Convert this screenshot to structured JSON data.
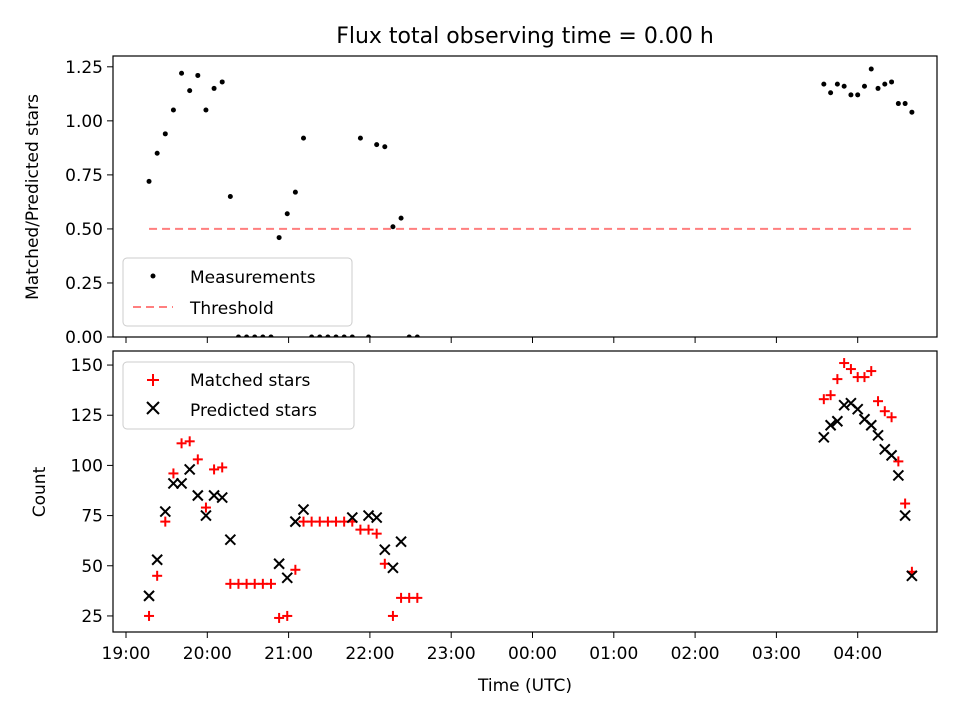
{
  "chart_data": [
    {
      "type": "scatter",
      "title": "Flux total observing time = 0.00 h",
      "xlabel": "",
      "ylabel": "Matched/Predicted stars",
      "xlim": [
        "19:00",
        "05:00"
      ],
      "ylim": [
        0,
        1.3
      ],
      "x_ticks": [
        "19:00",
        "20:00",
        "21:00",
        "22:00",
        "23:00",
        "00:00",
        "01:00",
        "02:00",
        "03:00",
        "04:00"
      ],
      "y_ticks": [
        "0.00",
        "0.25",
        "0.50",
        "0.75",
        "1.00",
        "1.25"
      ],
      "legend_position": "lower-left",
      "series": [
        {
          "name": "Measurements",
          "color": "#000000",
          "marker": "dot",
          "points": [
            [
              "19:17",
              0.72
            ],
            [
              "19:23",
              0.85
            ],
            [
              "19:29",
              0.94
            ],
            [
              "19:35",
              1.05
            ],
            [
              "19:41",
              1.22
            ],
            [
              "19:47",
              1.14
            ],
            [
              "19:53",
              1.21
            ],
            [
              "19:59",
              1.05
            ],
            [
              "20:05",
              1.15
            ],
            [
              "20:11",
              1.18
            ],
            [
              "20:17",
              0.65
            ],
            [
              "20:23",
              0.0
            ],
            [
              "20:29",
              0.0
            ],
            [
              "20:35",
              0.0
            ],
            [
              "20:41",
              0.0
            ],
            [
              "20:47",
              0.0
            ],
            [
              "20:53",
              0.46
            ],
            [
              "20:59",
              0.57
            ],
            [
              "21:05",
              0.67
            ],
            [
              "21:11",
              0.92
            ],
            [
              "21:17",
              0.0
            ],
            [
              "21:23",
              0.0
            ],
            [
              "21:29",
              0.0
            ],
            [
              "21:35",
              0.0
            ],
            [
              "21:41",
              0.0
            ],
            [
              "21:47",
              0.0
            ],
            [
              "21:53",
              0.92
            ],
            [
              "21:59",
              0.0
            ],
            [
              "22:05",
              0.89
            ],
            [
              "22:11",
              0.88
            ],
            [
              "22:17",
              0.51
            ],
            [
              "22:23",
              0.55
            ],
            [
              "22:29",
              0.0
            ],
            [
              "22:35",
              0.0
            ],
            [
              "03:35",
              1.17
            ],
            [
              "03:40",
              1.13
            ],
            [
              "03:45",
              1.17
            ],
            [
              "03:50",
              1.16
            ],
            [
              "03:55",
              1.12
            ],
            [
              "04:00",
              1.12
            ],
            [
              "04:05",
              1.16
            ],
            [
              "04:10",
              1.24
            ],
            [
              "04:15",
              1.15
            ],
            [
              "04:20",
              1.17
            ],
            [
              "04:25",
              1.18
            ],
            [
              "04:30",
              1.08
            ],
            [
              "04:35",
              1.08
            ],
            [
              "04:40",
              1.04
            ]
          ]
        },
        {
          "name": "Threshold",
          "color": "#ff7f7f",
          "style": "dashed",
          "points": [
            [
              "19:17",
              0.5
            ],
            [
              "04:40",
              0.5
            ]
          ]
        }
      ]
    },
    {
      "type": "scatter",
      "title": "",
      "xlabel": "Time (UTC)",
      "ylabel": "Count",
      "xlim": [
        "19:00",
        "05:00"
      ],
      "ylim": [
        17,
        157
      ],
      "x_ticks": [
        "19:00",
        "20:00",
        "21:00",
        "22:00",
        "23:00",
        "00:00",
        "01:00",
        "02:00",
        "03:00",
        "04:00"
      ],
      "y_ticks": [
        "25",
        "50",
        "75",
        "100",
        "125",
        "150"
      ],
      "legend_position": "upper-left",
      "series": [
        {
          "name": "Matched stars",
          "color": "#ff0000",
          "marker": "plus",
          "points": [
            [
              "19:17",
              25
            ],
            [
              "19:23",
              45
            ],
            [
              "19:29",
              72
            ],
            [
              "19:35",
              96
            ],
            [
              "19:41",
              111
            ],
            [
              "19:47",
              112
            ],
            [
              "19:53",
              103
            ],
            [
              "19:59",
              79
            ],
            [
              "20:05",
              98
            ],
            [
              "20:11",
              99
            ],
            [
              "20:17",
              41
            ],
            [
              "20:23",
              41
            ],
            [
              "20:29",
              41
            ],
            [
              "20:35",
              41
            ],
            [
              "20:41",
              41
            ],
            [
              "20:47",
              41
            ],
            [
              "20:53",
              24
            ],
            [
              "20:59",
              25
            ],
            [
              "21:05",
              48
            ],
            [
              "21:11",
              72
            ],
            [
              "21:17",
              72
            ],
            [
              "21:23",
              72
            ],
            [
              "21:29",
              72
            ],
            [
              "21:35",
              72
            ],
            [
              "21:41",
              72
            ],
            [
              "21:47",
              72
            ],
            [
              "21:53",
              68
            ],
            [
              "21:59",
              68
            ],
            [
              "22:05",
              66
            ],
            [
              "22:11",
              51
            ],
            [
              "22:17",
              25
            ],
            [
              "22:23",
              34
            ],
            [
              "22:29",
              34
            ],
            [
              "22:35",
              34
            ],
            [
              "03:35",
              133
            ],
            [
              "03:40",
              135
            ],
            [
              "03:45",
              143
            ],
            [
              "03:50",
              151
            ],
            [
              "03:55",
              148
            ],
            [
              "04:00",
              144
            ],
            [
              "04:05",
              144
            ],
            [
              "04:10",
              147
            ],
            [
              "04:15",
              132
            ],
            [
              "04:20",
              127
            ],
            [
              "04:25",
              124
            ],
            [
              "04:30",
              102
            ],
            [
              "04:35",
              81
            ],
            [
              "04:40",
              47
            ]
          ]
        },
        {
          "name": "Predicted stars",
          "color": "#000000",
          "marker": "x",
          "points": [
            [
              "19:17",
              35
            ],
            [
              "19:23",
              53
            ],
            [
              "19:29",
              77
            ],
            [
              "19:35",
              91
            ],
            [
              "19:41",
              91
            ],
            [
              "19:47",
              98
            ],
            [
              "19:53",
              85
            ],
            [
              "19:59",
              75
            ],
            [
              "20:05",
              85
            ],
            [
              "20:11",
              84
            ],
            [
              "20:17",
              63
            ],
            [
              "20:53",
              51
            ],
            [
              "20:59",
              44
            ],
            [
              "21:05",
              72
            ],
            [
              "21:11",
              78
            ],
            [
              "21:47",
              74
            ],
            [
              "21:59",
              75
            ],
            [
              "22:05",
              74
            ],
            [
              "22:11",
              58
            ],
            [
              "22:17",
              49
            ],
            [
              "22:23",
              62
            ],
            [
              "03:35",
              114
            ],
            [
              "03:40",
              120
            ],
            [
              "03:45",
              122
            ],
            [
              "03:50",
              130
            ],
            [
              "03:55",
              131
            ],
            [
              "04:00",
              128
            ],
            [
              "04:05",
              123
            ],
            [
              "04:10",
              120
            ],
            [
              "04:15",
              115
            ],
            [
              "04:20",
              108
            ],
            [
              "04:25",
              105
            ],
            [
              "04:30",
              95
            ],
            [
              "04:35",
              75
            ],
            [
              "04:40",
              45
            ]
          ]
        }
      ]
    }
  ]
}
